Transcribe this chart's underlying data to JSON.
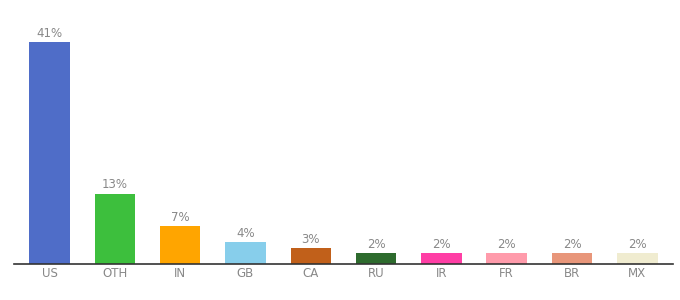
{
  "categories": [
    "US",
    "OTH",
    "IN",
    "GB",
    "CA",
    "RU",
    "IR",
    "FR",
    "BR",
    "MX"
  ],
  "values": [
    41,
    13,
    7,
    4,
    3,
    2,
    2,
    2,
    2,
    2
  ],
  "bar_colors": [
    "#4F6DC8",
    "#3DBF3D",
    "#FFA500",
    "#87CEEB",
    "#C1601A",
    "#2E6B2E",
    "#FF3EA5",
    "#FF9BAB",
    "#E8967A",
    "#F0ECD0"
  ],
  "ylim": [
    0,
    46
  ],
  "label_fontsize": 8.5,
  "tick_fontsize": 8.5,
  "label_color": "#888888",
  "tick_color": "#888888",
  "spine_color": "#333333",
  "background_color": "#ffffff"
}
